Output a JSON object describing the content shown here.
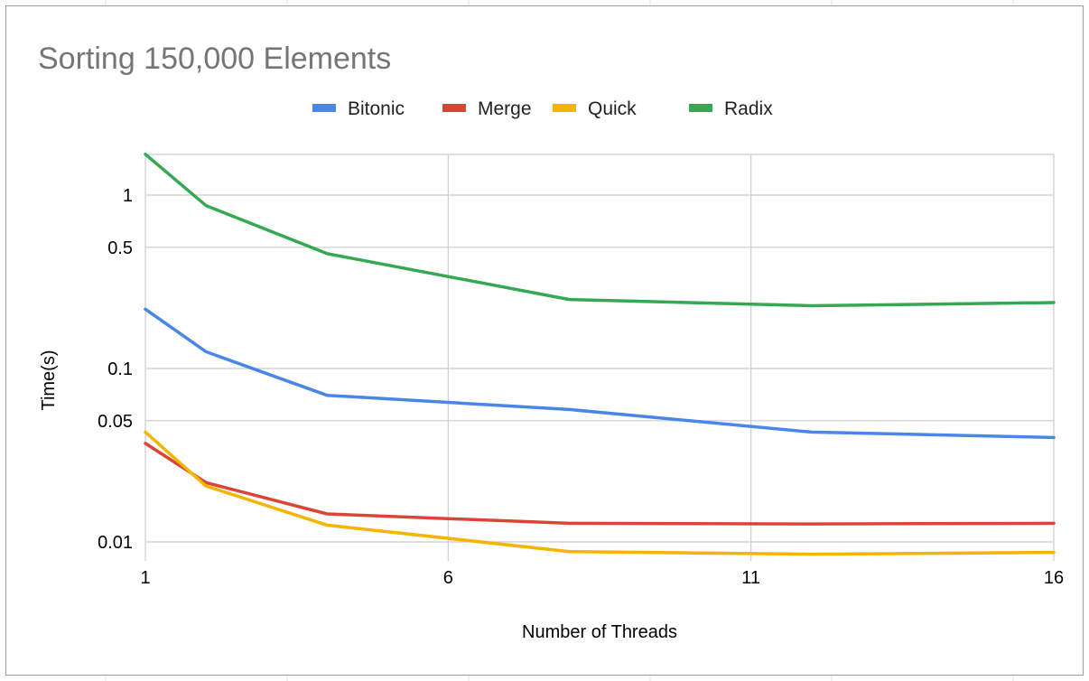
{
  "chart_data": {
    "type": "line",
    "title": "Sorting 150,000 Elements",
    "xlabel": "Number of Threads",
    "ylabel": "Time(s)",
    "x_scale": "linear",
    "y_scale": "log",
    "xlim": [
      1,
      16
    ],
    "x_ticks": [
      "1",
      "6",
      "11",
      "16"
    ],
    "y_ticks": [
      "0.01",
      "0.05",
      "0.1",
      "0.5",
      "1"
    ],
    "x": [
      1,
      2,
      4,
      8,
      12,
      16
    ],
    "legend_position": "top-center",
    "grid": true,
    "series": [
      {
        "name": "Bitonic",
        "color": "#4a86e8",
        "values": [
          0.22,
          0.125,
          0.07,
          0.058,
          0.043,
          0.04
        ]
      },
      {
        "name": "Merge",
        "color": "#db4437",
        "values": [
          0.037,
          0.022,
          0.0145,
          0.0128,
          0.0127,
          0.0128
        ]
      },
      {
        "name": "Quick",
        "color": "#f4b400",
        "values": [
          0.043,
          0.021,
          0.0125,
          0.0088,
          0.0085,
          0.0087
        ]
      },
      {
        "name": "Radix",
        "color": "#34a853",
        "values": [
          1.72,
          0.87,
          0.46,
          0.25,
          0.23,
          0.24
        ]
      }
    ]
  }
}
